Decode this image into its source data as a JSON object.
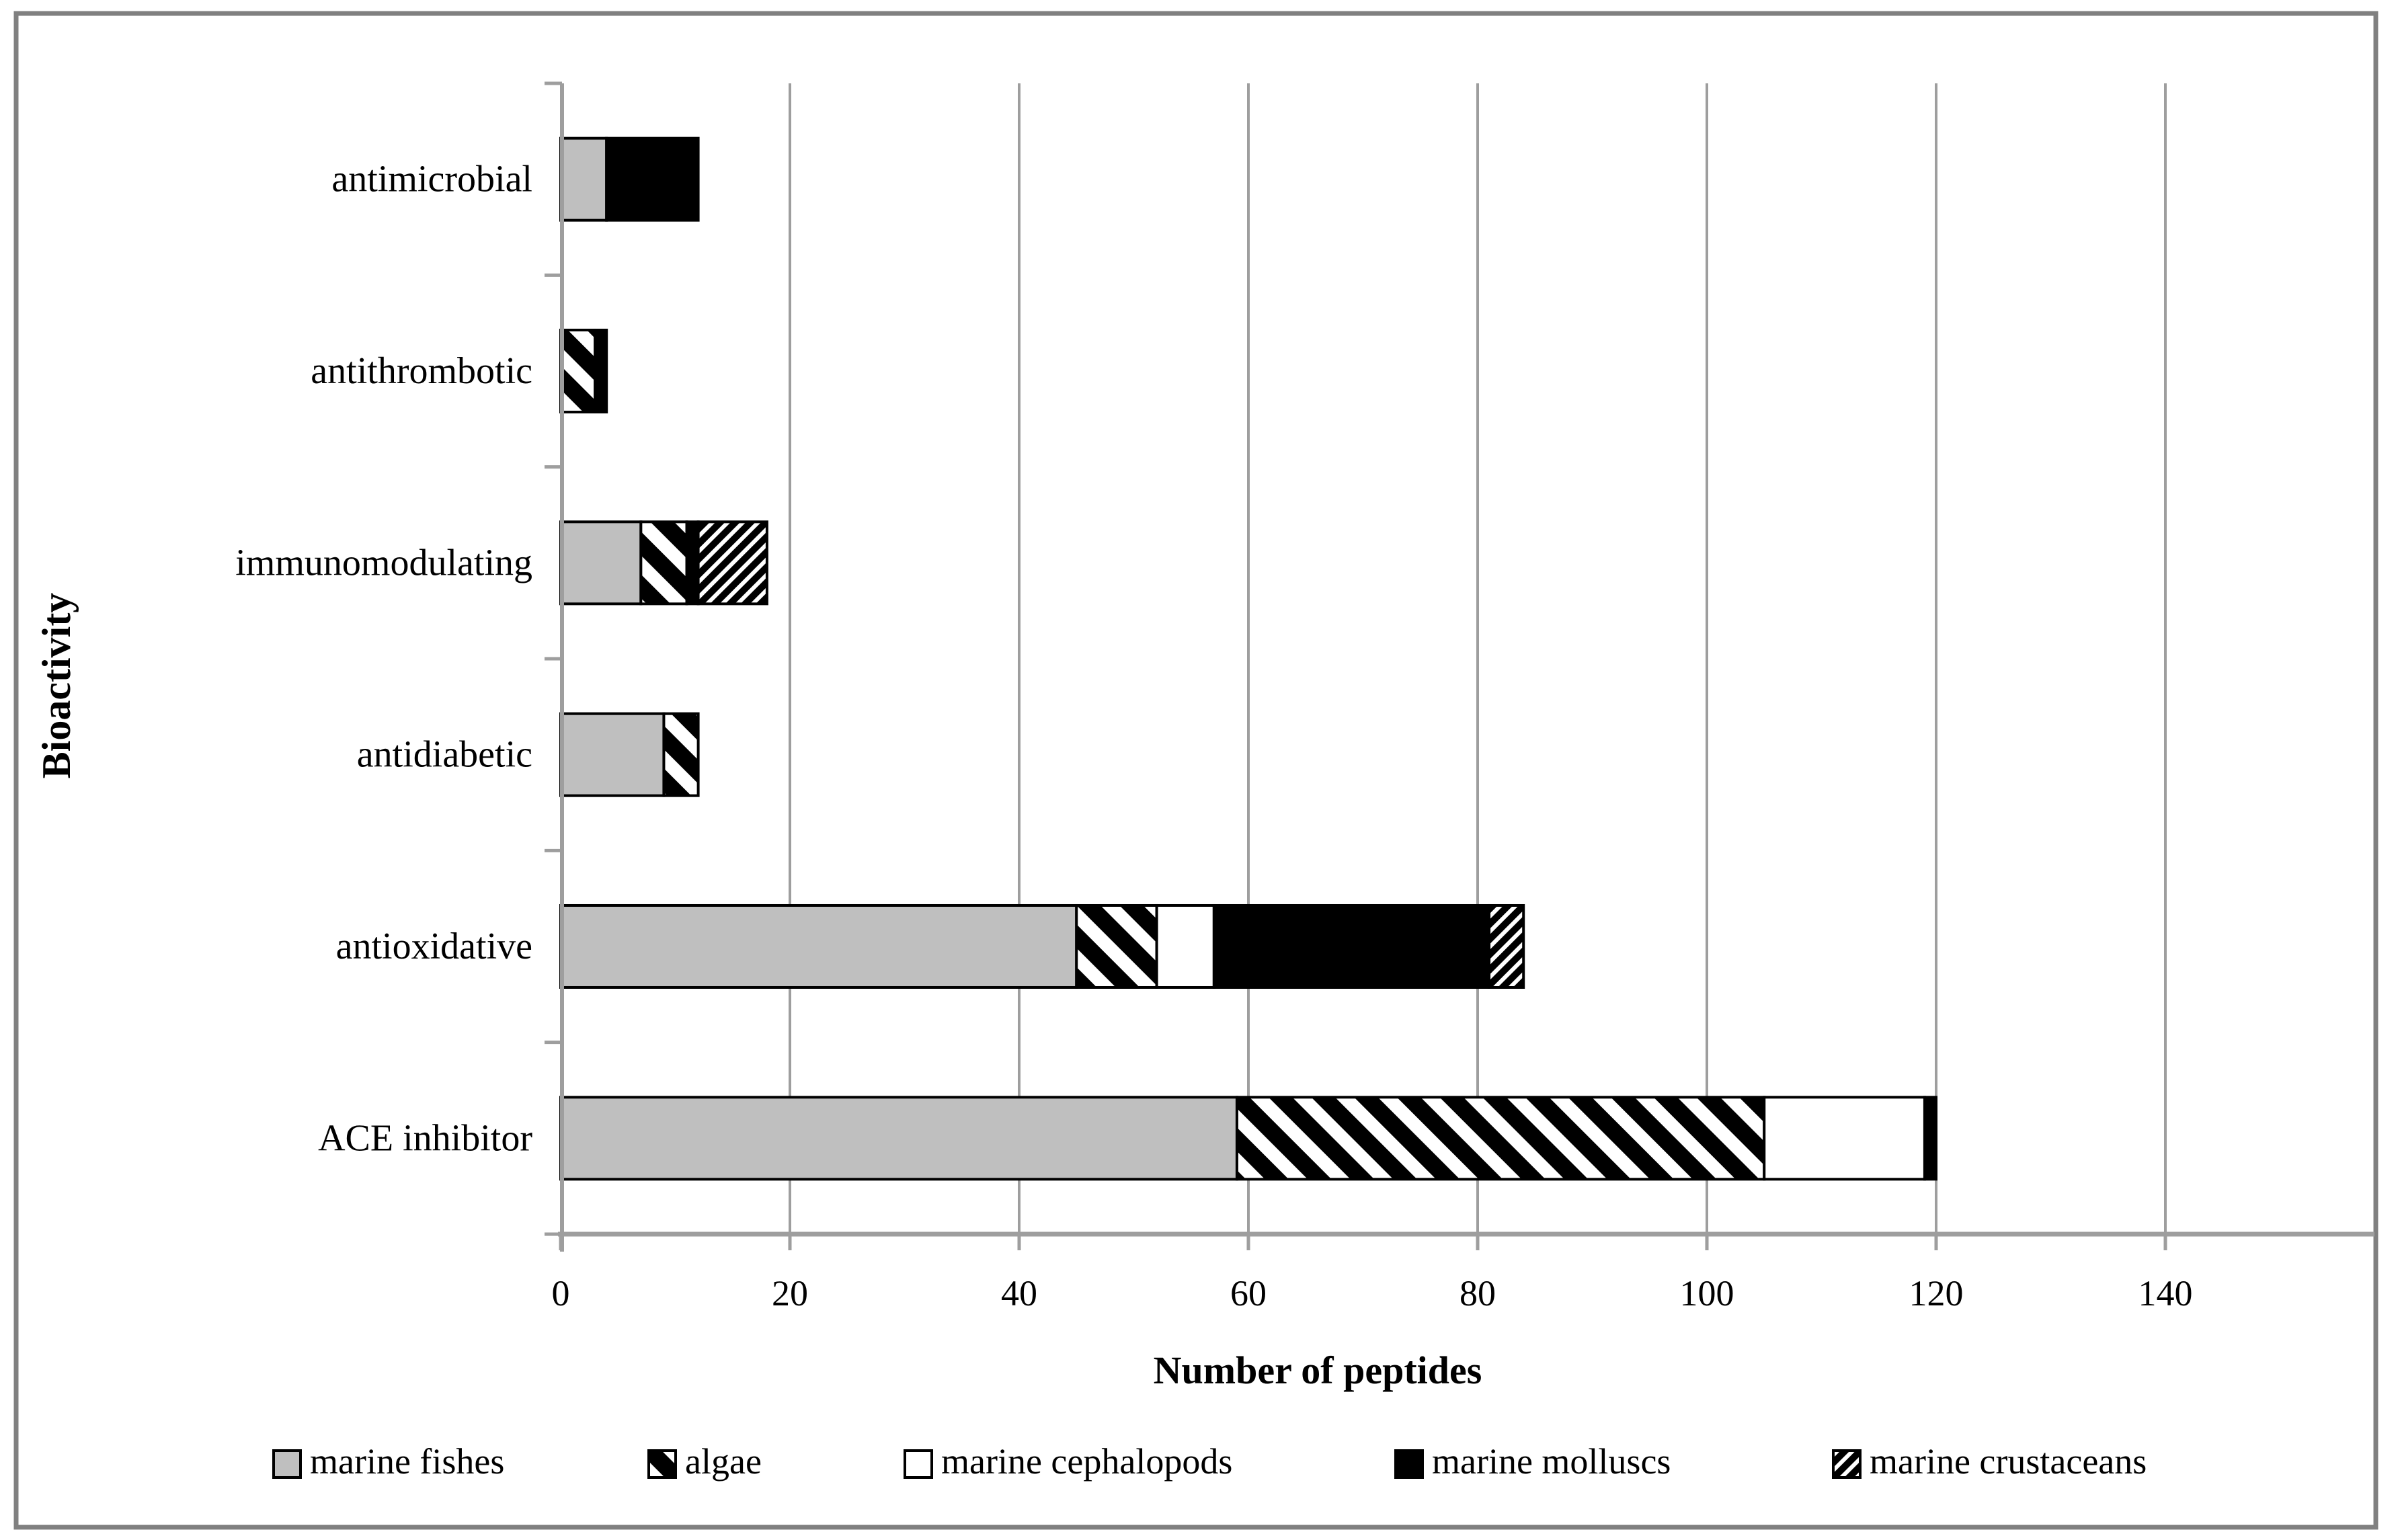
{
  "chart_data": {
    "type": "bar",
    "orientation": "horizontal",
    "stacked": true,
    "title": "",
    "xlabel": "Number of peptides",
    "ylabel": "Bioactivity",
    "xlim": [
      0,
      158
    ],
    "xticks": [
      0,
      20,
      40,
      60,
      80,
      100,
      120,
      140
    ],
    "grid": true,
    "legend_position": "bottom",
    "categories": [
      "antimicrobial",
      "antithrombotic",
      "immunomodulating",
      "antidiabetic",
      "antioxidative",
      "ACE inhibitor"
    ],
    "series": [
      {
        "name": "marine fishes",
        "pattern": "solid-gray",
        "values": [
          4,
          0,
          7,
          9,
          45,
          59
        ]
      },
      {
        "name": "algae",
        "pattern": "diagonal-up-hatch",
        "values": [
          0,
          3,
          4,
          3,
          7,
          46
        ]
      },
      {
        "name": "marine cephalopods",
        "pattern": "solid-white",
        "values": [
          0,
          0,
          0,
          0,
          5,
          14
        ]
      },
      {
        "name": "marine molluscs",
        "pattern": "solid-black",
        "values": [
          8,
          1,
          1,
          0,
          24,
          1
        ]
      },
      {
        "name": "marine crustaceans",
        "pattern": "diagonal-down-dense",
        "values": [
          0,
          0,
          6,
          0,
          3,
          0
        ]
      }
    ],
    "colors": {
      "bar_gray": "#bfbfbf",
      "black": "#000000",
      "white": "#ffffff",
      "axis_gray": "#9e9e9e",
      "frame_gray": "#808080",
      "text": "#000000"
    }
  }
}
